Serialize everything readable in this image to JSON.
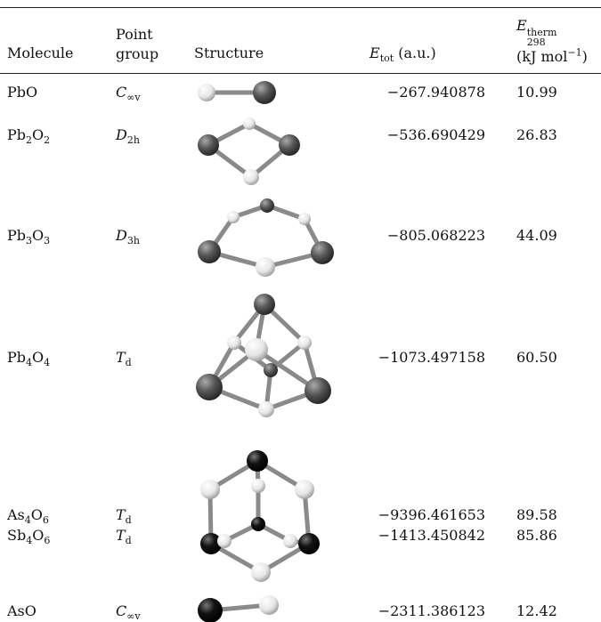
{
  "table": {
    "header": {
      "molecule": "Molecule",
      "point_group": "Point group",
      "structure": "Structure",
      "e_tot": {
        "symbol": "E",
        "sub": "tot",
        "unit": "(a.u.)"
      },
      "e_therm": {
        "symbol": "E",
        "sup": "therm",
        "sub": "298",
        "unit": [
          "(kJ mol",
          "−1",
          ")"
        ]
      }
    },
    "rows": [
      {
        "molecule": [
          "PbO"
        ],
        "point_group": {
          "symbol": "C",
          "sub": "∞v"
        },
        "e_tot": "−267.940878",
        "e_therm": "10.99"
      },
      {
        "molecule": [
          "Pb",
          "2",
          "O",
          "2"
        ],
        "point_group": {
          "symbol": "D",
          "sub": "2h"
        },
        "e_tot": "−536.690429",
        "e_therm": "26.83"
      },
      {
        "molecule": [
          "Pb",
          "3",
          "O",
          "3"
        ],
        "point_group": {
          "symbol": "D",
          "sub": "3h"
        },
        "e_tot": "−805.068223",
        "e_therm": "44.09"
      },
      {
        "molecule": [
          "Pb",
          "4",
          "O",
          "4"
        ],
        "point_group": {
          "symbol": "T",
          "sub": "d"
        },
        "e_tot": "−1073.497158",
        "e_therm": "60.50"
      },
      {
        "molecule": [
          "As",
          "4",
          "O",
          "6"
        ],
        "point_group": {
          "symbol": "T",
          "sub": "d"
        },
        "e_tot": "−9396.461653",
        "e_therm": "89.58"
      },
      {
        "molecule": [
          "Sb",
          "4",
          "O",
          "6"
        ],
        "point_group": {
          "symbol": "T",
          "sub": "d"
        },
        "e_tot": "−1413.450842",
        "e_therm": "85.86"
      },
      {
        "molecule": [
          "AsO"
        ],
        "point_group": {
          "symbol": "C",
          "sub": "∞v"
        },
        "e_tot": "−2311.386123",
        "e_therm": "12.42"
      }
    ]
  }
}
